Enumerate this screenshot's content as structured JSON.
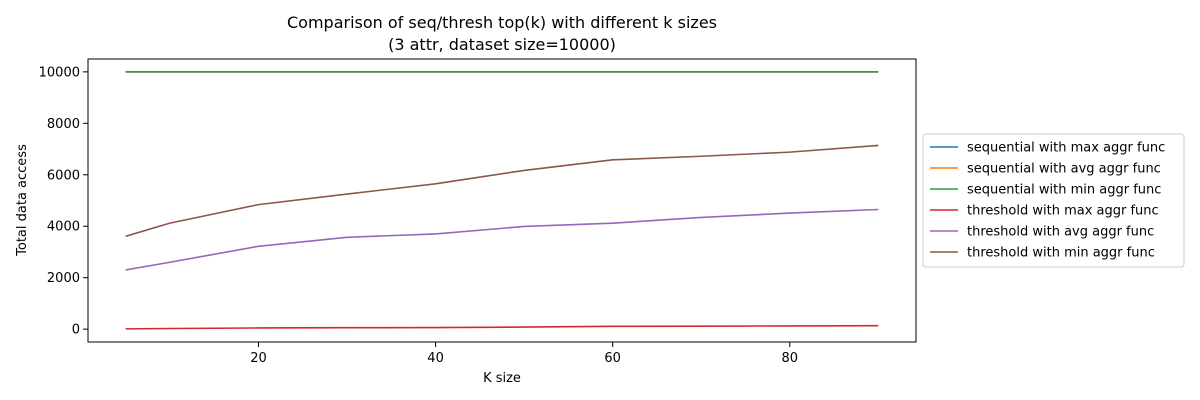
{
  "chart_data": {
    "type": "line",
    "title": [
      "Comparison of seq/thresh top(k) with different k sizes",
      "(3 attr, dataset size=10000)"
    ],
    "xlabel": "K size",
    "ylabel": "Total data access",
    "x": [
      5,
      10,
      20,
      30,
      40,
      50,
      60,
      70,
      80,
      90
    ],
    "xlim": [
      0.75,
      94.25
    ],
    "ylim": [
      -500,
      10500
    ],
    "xticks": [
      20,
      40,
      60,
      80
    ],
    "yticks": [
      0,
      2000,
      4000,
      6000,
      8000,
      10000
    ],
    "grid": false,
    "legend_position": "outside-right",
    "series": [
      {
        "name": "sequential with max aggr func",
        "color": "#1f77b4",
        "values": [
          10000,
          10000,
          10000,
          10000,
          10000,
          10000,
          10000,
          10000,
          10000,
          10000
        ]
      },
      {
        "name": "sequential with avg aggr func",
        "color": "#ff7f0e",
        "values": [
          10000,
          10000,
          10000,
          10000,
          10000,
          10000,
          10000,
          10000,
          10000,
          10000
        ]
      },
      {
        "name": "sequential with min aggr func",
        "color": "#2ca02c",
        "values": [
          10000,
          10000,
          10000,
          10000,
          10000,
          10000,
          10000,
          10000,
          10000,
          10000
        ]
      },
      {
        "name": "threshold with max aggr func",
        "color": "#d62728",
        "values": [
          10,
          25,
          45,
          55,
          60,
          80,
          110,
          115,
          125,
          135
        ]
      },
      {
        "name": "threshold with avg aggr func",
        "color": "#9467bd",
        "values": [
          2300,
          2600,
          3220,
          3570,
          3700,
          3990,
          4120,
          4340,
          4510,
          4650
        ]
      },
      {
        "name": "threshold with min aggr func",
        "color": "#8c564b",
        "values": [
          3610,
          4120,
          4840,
          5250,
          5650,
          6170,
          6580,
          6720,
          6880,
          7140
        ]
      }
    ]
  }
}
